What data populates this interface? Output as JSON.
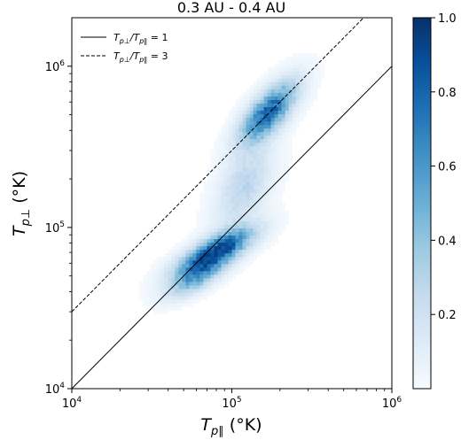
{
  "chart_data": {
    "type": "heatmap",
    "title": "0.3 AU - 0.4 AU",
    "xlabel": "T_{p∥} (°K)",
    "xlabel_main": "T",
    "xlabel_sub": "p∥",
    "xlabel_unit": " (°K)",
    "ylabel_main": "T",
    "ylabel_sub": "p⊥",
    "ylabel_unit": " (°K)",
    "xscale": "log",
    "yscale": "log",
    "xlim": [
      10000,
      1000000
    ],
    "ylim": [
      10000,
      2000000
    ],
    "x_ticks": [
      {
        "value": 10000,
        "base": "10",
        "exp": "4"
      },
      {
        "value": 100000,
        "base": "10",
        "exp": "5"
      },
      {
        "value": 1000000,
        "base": "10",
        "exp": "6"
      }
    ],
    "y_ticks": [
      {
        "value": 10000,
        "base": "10",
        "exp": "4"
      },
      {
        "value": 100000,
        "base": "10",
        "exp": "5"
      },
      {
        "value": 1000000,
        "base": "10",
        "exp": "6"
      }
    ],
    "grid": false,
    "legend_position": "top-left",
    "lines": [
      {
        "label_main": "T",
        "label_sub1": "p⊥",
        "label_mid": "/T",
        "label_sub2": "p∥",
        "label_eq": " = 1",
        "ratio": 1,
        "style": "solid"
      },
      {
        "label_main": "T",
        "label_sub1": "p⊥",
        "label_mid": "/T",
        "label_sub2": "p∥",
        "label_eq": " = 3",
        "ratio": 3,
        "style": "dashed"
      }
    ],
    "density_clusters": [
      {
        "x": 78000,
        "y": 70000,
        "sx": 0.16,
        "sy": 0.1,
        "rho": 0.75,
        "weight": 1.0
      },
      {
        "x": 170000,
        "y": 520000,
        "sx": 0.12,
        "sy": 0.13,
        "rho": 0.7,
        "weight": 0.85
      },
      {
        "x": 120000,
        "y": 180000,
        "sx": 0.12,
        "sy": 0.18,
        "rho": 0.5,
        "weight": 0.3
      },
      {
        "x": 60000,
        "y": 48000,
        "sx": 0.12,
        "sy": 0.08,
        "rho": 0.7,
        "weight": 0.45
      }
    ],
    "colorbar": {
      "min": 0,
      "max": 1.0,
      "ticks": [
        "0.2",
        "0.4",
        "0.6",
        "0.8",
        "1.0"
      ],
      "tick_values": [
        0.2,
        0.4,
        0.6,
        0.8,
        1.0
      ],
      "colormap": "Blues",
      "color_low": "#f7fbff",
      "color_high": "#08306b"
    }
  }
}
